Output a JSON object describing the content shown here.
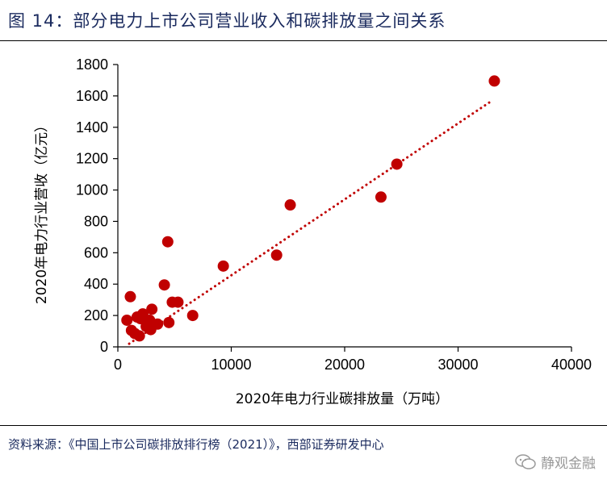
{
  "title": "图 14：部分电力上市公司营业收入和碳排放量之间关系",
  "source": "资料来源：《中国上市公司碳排放排行榜（2021）》，西部证券研发中心",
  "watermark": "静观金融",
  "colors": {
    "points": "#c00000",
    "trend": "#c00000",
    "title": "#1a2a5e"
  },
  "chart_data": {
    "type": "scatter",
    "title": "",
    "xlabel": "2020年电力行业碳排放量（万吨）",
    "ylabel": "2020年电力行业营收（亿元）",
    "xlim": [
      0,
      40000
    ],
    "ylim": [
      0,
      1800
    ],
    "xticks": [
      0,
      10000,
      20000,
      30000,
      40000
    ],
    "yticks": [
      0,
      200,
      400,
      600,
      800,
      1000,
      1200,
      1400,
      1600,
      1800
    ],
    "grid": false,
    "trendline": {
      "style": "dotted",
      "x": [
        1000,
        33000
      ],
      "y": [
        20,
        1570
      ]
    },
    "points": [
      [
        800,
        170
      ],
      [
        1100,
        320
      ],
      [
        1200,
        105
      ],
      [
        1500,
        85
      ],
      [
        1700,
        190
      ],
      [
        1900,
        70
      ],
      [
        2000,
        180
      ],
      [
        2200,
        210
      ],
      [
        2500,
        130
      ],
      [
        2800,
        170
      ],
      [
        2900,
        110
      ],
      [
        3000,
        240
      ],
      [
        3500,
        145
      ],
      [
        4100,
        395
      ],
      [
        4400,
        670
      ],
      [
        4500,
        155
      ],
      [
        4800,
        285
      ],
      [
        5300,
        285
      ],
      [
        6600,
        200
      ],
      [
        9300,
        515
      ],
      [
        14000,
        585
      ],
      [
        15200,
        905
      ],
      [
        23200,
        955
      ],
      [
        24600,
        1165
      ],
      [
        33200,
        1695
      ]
    ]
  }
}
